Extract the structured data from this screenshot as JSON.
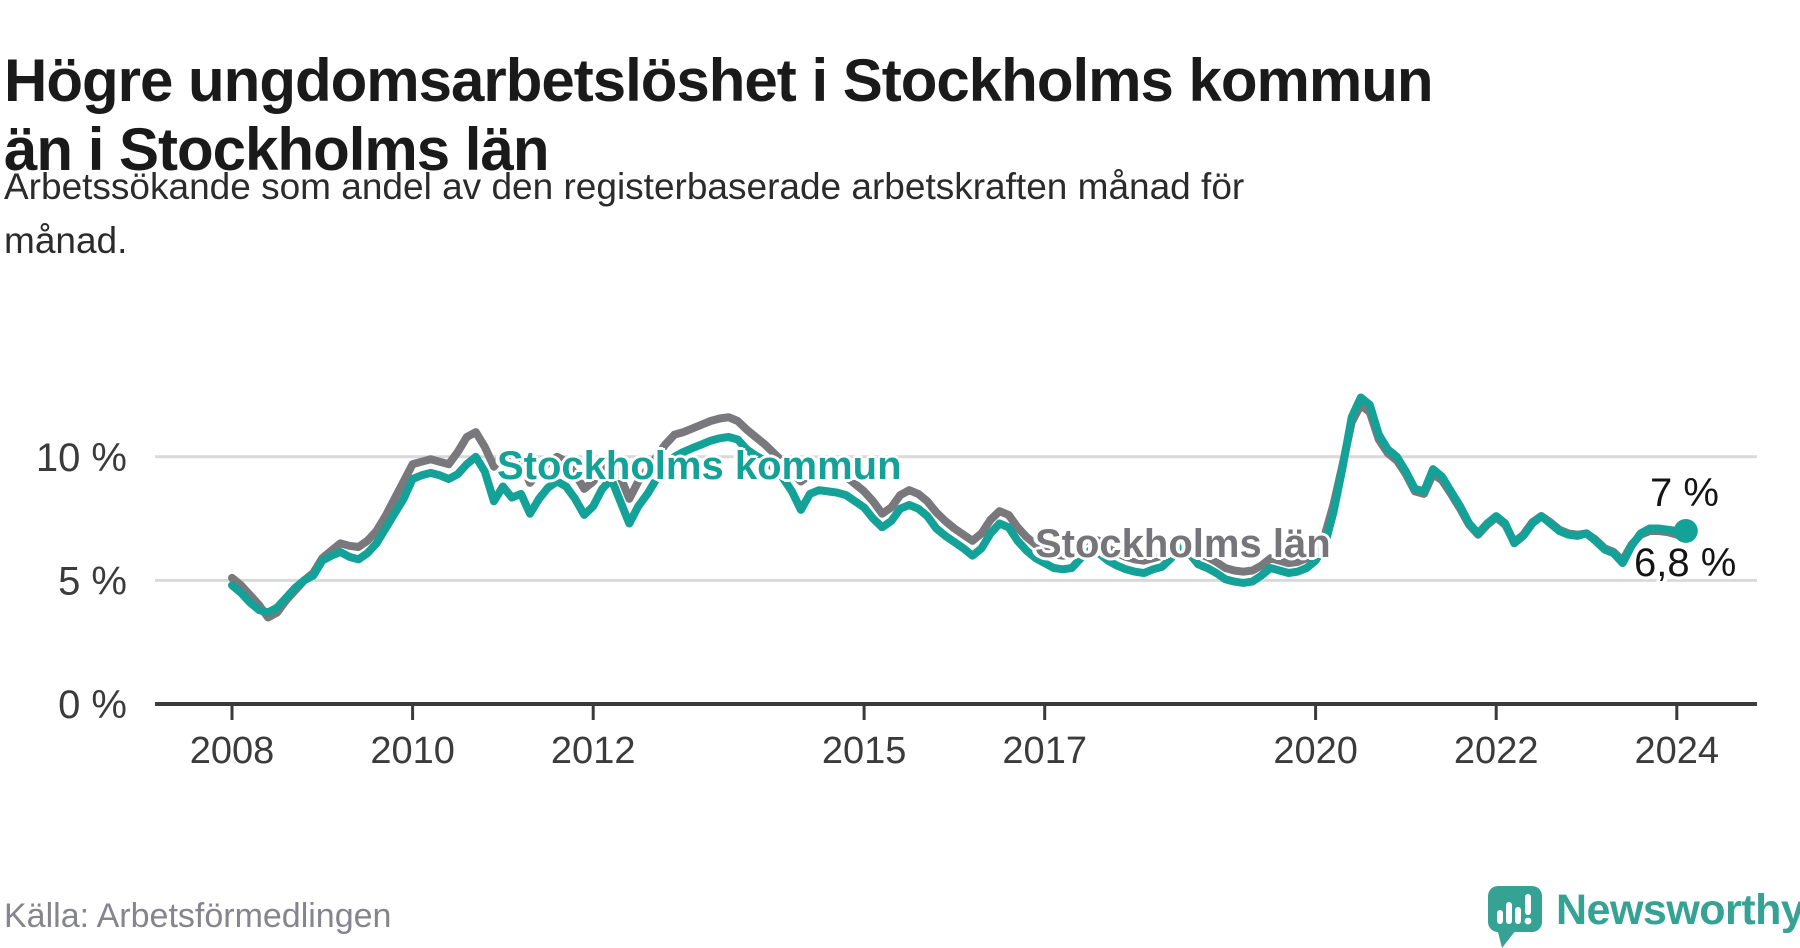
{
  "header": {
    "title": "Högre ungdomsarbetslöshet i Stockholms kommun än i Stockholms län",
    "title_lines": [
      "Högre ungdomsarbetslöshet i Stockholms kommun",
      "än i Stockholms län"
    ],
    "subtitle": "Arbetssökande som andel av den registerbaserade arbetskraften månad för månad.",
    "subtitle_lines": [
      "Arbetssökande som andel av den registerbaserade arbetskraften månad för",
      "månad."
    ]
  },
  "footer": {
    "source": "Källa: Arbetsförmedlingen",
    "brand_name": "Newsworthy"
  },
  "colors": {
    "kommun_line": "#14a298",
    "lan_line": "#78787d",
    "axis": "#3a3a3a",
    "grid": "#d9d9d9",
    "title_text": "#1a1a1a",
    "source_text": "#85858d",
    "brand_teal": "#36a294",
    "end_dot": "#14a298"
  },
  "chart_data": {
    "type": "line",
    "title": "Högre ungdomsarbetslöshet i Stockholms kommun än i Stockholms län",
    "ylabel": "Arbetssökande som andel av den registerbaserade arbetskraften",
    "unit": "%",
    "x_start": 2008.0,
    "x_step_years": 0.1,
    "xlim": [
      2007.15,
      2024.9
    ],
    "ylim": [
      0,
      13.4
    ],
    "grid": "horizontal",
    "x_ticks": [
      "2008",
      "2010",
      "2012",
      "2015",
      "2017",
      "2020",
      "2022",
      "2024"
    ],
    "x_tick_years": [
      2008,
      2010,
      2012,
      2015,
      2017,
      2020,
      2022,
      2024
    ],
    "y_ticks": [
      {
        "label": "0 %",
        "value": 0,
        "is_axis": true
      },
      {
        "label": "5 %",
        "value": 5,
        "is_axis": false
      },
      {
        "label": "10 %",
        "value": 10,
        "is_axis": false
      }
    ],
    "annotations": {
      "kommun_series": "Stockholms kommun",
      "lan_series": "Stockholms län",
      "kommun_end": "7 %",
      "lan_end": "6,8 %"
    },
    "series": [
      {
        "name": "Stockholms län",
        "color": "#78787d",
        "end_dot": false,
        "end_value": 6.8,
        "values": [
          5.1,
          4.8,
          4.4,
          4.0,
          3.5,
          3.7,
          4.2,
          4.6,
          5.0,
          5.3,
          5.9,
          6.2,
          6.5,
          6.4,
          6.35,
          6.6,
          7.0,
          7.6,
          8.3,
          9.0,
          9.7,
          9.8,
          9.9,
          9.8,
          9.7,
          10.2,
          10.8,
          11.0,
          10.4,
          9.6,
          10.1,
          9.6,
          9.75,
          8.95,
          9.4,
          9.75,
          10.0,
          9.8,
          9.3,
          8.7,
          9.0,
          9.6,
          10.0,
          9.2,
          8.3,
          9.0,
          9.5,
          10.0,
          10.5,
          10.9,
          11.0,
          11.15,
          11.3,
          11.45,
          11.55,
          11.6,
          11.45,
          11.1,
          10.8,
          10.5,
          10.15,
          9.8,
          9.4,
          9.0,
          9.3,
          9.4,
          9.35,
          9.3,
          9.2,
          8.9,
          8.6,
          8.2,
          7.7,
          7.95,
          8.45,
          8.65,
          8.5,
          8.2,
          7.75,
          7.4,
          7.1,
          6.85,
          6.6,
          6.9,
          7.45,
          7.8,
          7.65,
          7.15,
          6.75,
          6.45,
          6.25,
          6.05,
          6.0,
          6.05,
          6.45,
          6.7,
          6.6,
          6.3,
          6.1,
          5.95,
          5.85,
          5.8,
          5.9,
          6.0,
          6.35,
          6.7,
          6.5,
          6.1,
          5.95,
          5.75,
          5.5,
          5.4,
          5.35,
          5.4,
          5.6,
          5.9,
          5.8,
          5.7,
          5.75,
          5.9,
          6.2,
          6.8,
          8.1,
          9.7,
          11.4,
          12.1,
          11.8,
          10.7,
          10.15,
          9.85,
          9.3,
          8.6,
          8.5,
          9.3,
          9.05,
          8.5,
          7.9,
          7.25,
          6.85,
          7.25,
          7.55,
          7.25,
          6.55,
          6.85,
          7.35,
          7.6,
          7.35,
          7.05,
          6.9,
          6.85,
          6.9,
          6.65,
          6.3,
          6.15,
          5.8,
          6.45,
          6.85,
          7.0,
          7.0,
          6.95,
          6.85,
          6.8
        ]
      },
      {
        "name": "Stockholms kommun",
        "color": "#14a298",
        "end_dot": true,
        "end_value": 7.0,
        "values": [
          4.8,
          4.5,
          4.1,
          3.8,
          3.7,
          3.9,
          4.3,
          4.7,
          5.0,
          5.2,
          5.8,
          6.0,
          6.15,
          5.95,
          5.85,
          6.1,
          6.5,
          7.1,
          7.7,
          8.3,
          9.1,
          9.25,
          9.35,
          9.25,
          9.1,
          9.3,
          9.7,
          10.0,
          9.4,
          8.2,
          8.8,
          8.35,
          8.5,
          7.7,
          8.3,
          8.75,
          9.0,
          8.8,
          8.3,
          7.65,
          8.0,
          8.7,
          9.1,
          8.2,
          7.3,
          8.0,
          8.5,
          9.1,
          9.6,
          10.0,
          10.2,
          10.35,
          10.5,
          10.65,
          10.75,
          10.8,
          10.7,
          10.3,
          10.05,
          9.85,
          9.55,
          9.15,
          8.6,
          7.85,
          8.5,
          8.65,
          8.6,
          8.55,
          8.45,
          8.2,
          7.95,
          7.5,
          7.15,
          7.4,
          7.9,
          8.05,
          7.9,
          7.6,
          7.1,
          6.8,
          6.55,
          6.3,
          6.0,
          6.3,
          6.9,
          7.3,
          7.15,
          6.6,
          6.2,
          5.9,
          5.7,
          5.5,
          5.45,
          5.5,
          5.9,
          6.2,
          6.1,
          5.8,
          5.6,
          5.45,
          5.35,
          5.3,
          5.45,
          5.55,
          5.9,
          6.3,
          6.1,
          5.65,
          5.5,
          5.3,
          5.05,
          4.95,
          4.9,
          4.95,
          5.2,
          5.5,
          5.4,
          5.3,
          5.35,
          5.5,
          5.8,
          6.4,
          7.8,
          9.6,
          11.6,
          12.4,
          12.1,
          10.9,
          10.3,
          10.0,
          9.4,
          8.7,
          8.6,
          9.5,
          9.2,
          8.6,
          8.0,
          7.3,
          6.9,
          7.3,
          7.6,
          7.3,
          6.5,
          6.8,
          7.3,
          7.6,
          7.3,
          7.0,
          6.85,
          6.8,
          6.9,
          6.6,
          6.25,
          6.1,
          5.7,
          6.4,
          6.9,
          7.1,
          7.1,
          7.05,
          7.0,
          7.0
        ]
      }
    ]
  }
}
